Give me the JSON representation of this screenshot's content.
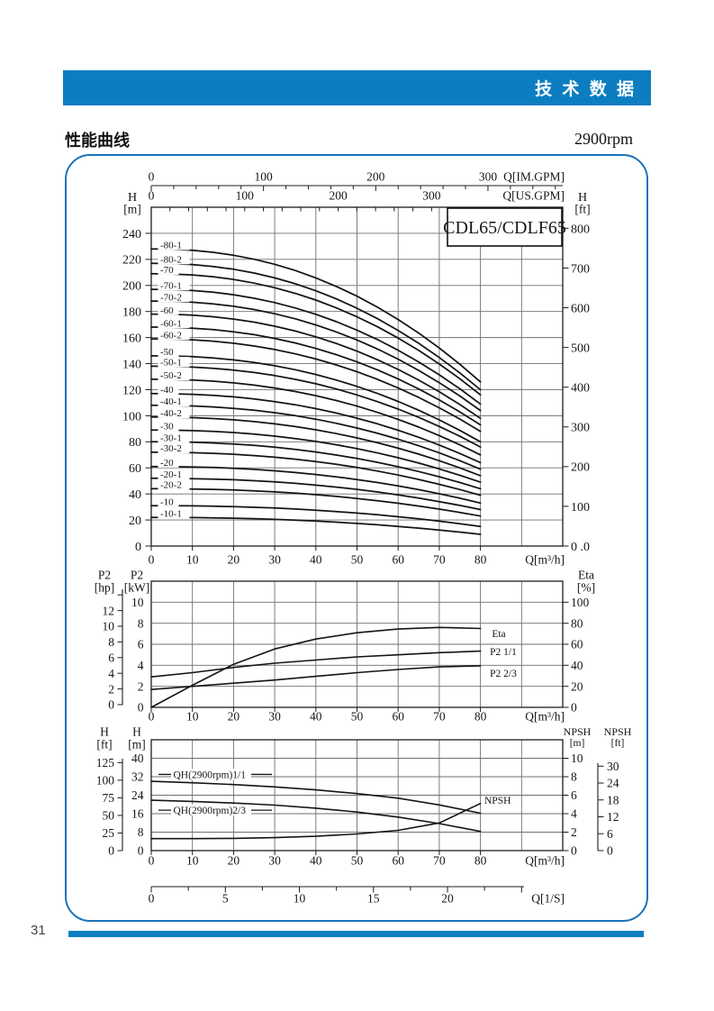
{
  "header": {
    "title": "技 术 数 据"
  },
  "section": {
    "title": "性能曲线",
    "speed": "2900rpm"
  },
  "footer": {
    "page_number": "31"
  },
  "colors": {
    "accent_blue": "#0d7dc1",
    "box_border_blue": "#1a73ba",
    "ink": "#141414"
  },
  "chart_data": [
    {
      "type": "line",
      "title": "CDL65/CDLF65",
      "x_axis": {
        "label": "Q[m³/h]",
        "ticks": [
          0,
          10,
          20,
          30,
          40,
          50,
          60,
          70,
          80
        ],
        "range": [
          0,
          100
        ]
      },
      "x_axis_imperial": {
        "label": "Q[IM.GPM]",
        "ticks": [
          0,
          100,
          200,
          300
        ]
      },
      "x_axis_us": {
        "label": "Q[US.GPM]",
        "ticks": [
          0,
          100,
          200,
          300
        ]
      },
      "y_left": {
        "title": "H",
        "unit": "[m]",
        "ticks": [
          0,
          20,
          40,
          60,
          80,
          100,
          120,
          140,
          160,
          180,
          200,
          220,
          240
        ],
        "range": [
          0,
          260
        ]
      },
      "y_right": {
        "title": "H",
        "unit": "[ft]",
        "ticks": [
          0,
          100,
          200,
          300,
          400,
          500,
          600,
          700,
          800
        ],
        "tick_labels": [
          "0 .0",
          "100",
          "200",
          "300",
          "400",
          "500",
          "600",
          "700",
          "800"
        ]
      },
      "series": [
        {
          "name": "-80-1",
          "shutoff_head_m": 228,
          "head_at_80m3h_m": 126
        },
        {
          "name": "-80-2",
          "shutoff_head_m": 217,
          "head_at_80m3h_m": 120
        },
        {
          "name": "-70",
          "shutoff_head_m": 209,
          "head_at_80m3h_m": 116
        },
        {
          "name": "-70-1",
          "shutoff_head_m": 197,
          "head_at_80m3h_m": 109
        },
        {
          "name": "-70-2",
          "shutoff_head_m": 188,
          "head_at_80m3h_m": 104
        },
        {
          "name": "-60",
          "shutoff_head_m": 178,
          "head_at_80m3h_m": 98
        },
        {
          "name": "-60-1",
          "shutoff_head_m": 168,
          "head_at_80m3h_m": 93
        },
        {
          "name": "-60-2",
          "shutoff_head_m": 159,
          "head_at_80m3h_m": 88
        },
        {
          "name": "-50",
          "shutoff_head_m": 146,
          "head_at_80m3h_m": 80
        },
        {
          "name": "-50-1",
          "shutoff_head_m": 138,
          "head_at_80m3h_m": 76
        },
        {
          "name": "-50-2",
          "shutoff_head_m": 128,
          "head_at_80m3h_m": 70
        },
        {
          "name": "-40",
          "shutoff_head_m": 117,
          "head_at_80m3h_m": 64
        },
        {
          "name": "-40-1",
          "shutoff_head_m": 108,
          "head_at_80m3h_m": 59
        },
        {
          "name": "-40-2",
          "shutoff_head_m": 99,
          "head_at_80m3h_m": 54
        },
        {
          "name": "-30",
          "shutoff_head_m": 89,
          "head_at_80m3h_m": 49
        },
        {
          "name": "-30-1",
          "shutoff_head_m": 80,
          "head_at_80m3h_m": 44
        },
        {
          "name": "-30-2",
          "shutoff_head_m": 72,
          "head_at_80m3h_m": 39
        },
        {
          "name": "-20",
          "shutoff_head_m": 61,
          "head_at_80m3h_m": 33
        },
        {
          "name": "-20-1",
          "shutoff_head_m": 52,
          "head_at_80m3h_m": 28
        },
        {
          "name": "-20-2",
          "shutoff_head_m": 44,
          "head_at_80m3h_m": 23
        },
        {
          "name": "-10",
          "shutoff_head_m": 31,
          "head_at_80m3h_m": 15
        },
        {
          "name": "-10-1",
          "shutoff_head_m": 22,
          "head_at_80m3h_m": 9
        }
      ]
    },
    {
      "type": "line",
      "x": [
        0,
        10,
        20,
        30,
        40,
        50,
        60,
        70,
        80
      ],
      "x_axis": {
        "label": "Q[m³/h]",
        "ticks": [
          0,
          10,
          20,
          30,
          40,
          50,
          60,
          70,
          80
        ],
        "range": [
          0,
          100
        ]
      },
      "y_left_hp": {
        "title": "P2",
        "unit": "[hp]",
        "ticks": [
          0,
          2,
          4,
          6,
          8,
          10,
          12
        ]
      },
      "y_left_kw": {
        "title": "P2",
        "unit": "[kW]",
        "ticks": [
          0,
          2,
          4,
          6,
          8,
          10
        ],
        "range": [
          0,
          12
        ]
      },
      "y_right": {
        "title": "Eta",
        "unit": "[%]",
        "ticks": [
          0,
          20,
          40,
          60,
          80,
          100
        ]
      },
      "series": [
        {
          "name": "Eta",
          "unit": "%",
          "values": [
            0,
            21,
            41,
            55.5,
            65,
            71,
            74.5,
            76,
            75
          ]
        },
        {
          "name": "P2 1/1",
          "unit": "kW",
          "values": [
            2.9,
            3.3,
            3.8,
            4.2,
            4.5,
            4.8,
            5.0,
            5.2,
            5.35
          ]
        },
        {
          "name": "P2 2/3",
          "unit": "kW",
          "values": [
            1.7,
            2.0,
            2.3,
            2.6,
            2.95,
            3.3,
            3.6,
            3.85,
            3.95
          ]
        }
      ]
    },
    {
      "type": "line",
      "x": [
        0,
        10,
        20,
        30,
        40,
        50,
        60,
        70,
        80
      ],
      "x_axis": {
        "label": "Q[m³/h]",
        "ticks": [
          0,
          10,
          20,
          30,
          40,
          50,
          60,
          70,
          80
        ],
        "range": [
          0,
          100
        ]
      },
      "x_axis_ls": {
        "label": "Q[1/S]",
        "ticks": [
          0,
          5,
          10,
          15,
          20
        ]
      },
      "y_left_ft": {
        "title": "H",
        "unit": "[ft]",
        "ticks": [
          0,
          25,
          50,
          75,
          100,
          125
        ]
      },
      "y_left_m": {
        "title": "H",
        "unit": "[m]",
        "ticks": [
          0,
          8,
          16,
          24,
          32,
          40
        ],
        "range": [
          0,
          48
        ]
      },
      "y_right_npsh_m": {
        "title": "NPSH",
        "unit": "[m]",
        "ticks": [
          0,
          2,
          4,
          6,
          8,
          10
        ]
      },
      "y_right_npsh_ft": {
        "title": "NPSH",
        "unit": "[ft]",
        "ticks": [
          0,
          6,
          12,
          18,
          24,
          30
        ]
      },
      "series": [
        {
          "name": "QH(2900rpm)1/1",
          "unit": "m",
          "values": [
            30,
            29.4,
            28.6,
            27.6,
            26.3,
            24.7,
            22.7,
            19.8,
            16.2
          ]
        },
        {
          "name": "QH(2900rpm)2/3",
          "unit": "m",
          "values": [
            21.8,
            21.3,
            20.6,
            19.7,
            18.4,
            16.7,
            14.5,
            11.7,
            8.3
          ]
        },
        {
          "name": "NPSH",
          "unit": "m(NPSH)",
          "values": [
            1.3,
            1.3,
            1.33,
            1.4,
            1.55,
            1.8,
            2.2,
            3.0,
            5.1
          ]
        }
      ]
    }
  ]
}
